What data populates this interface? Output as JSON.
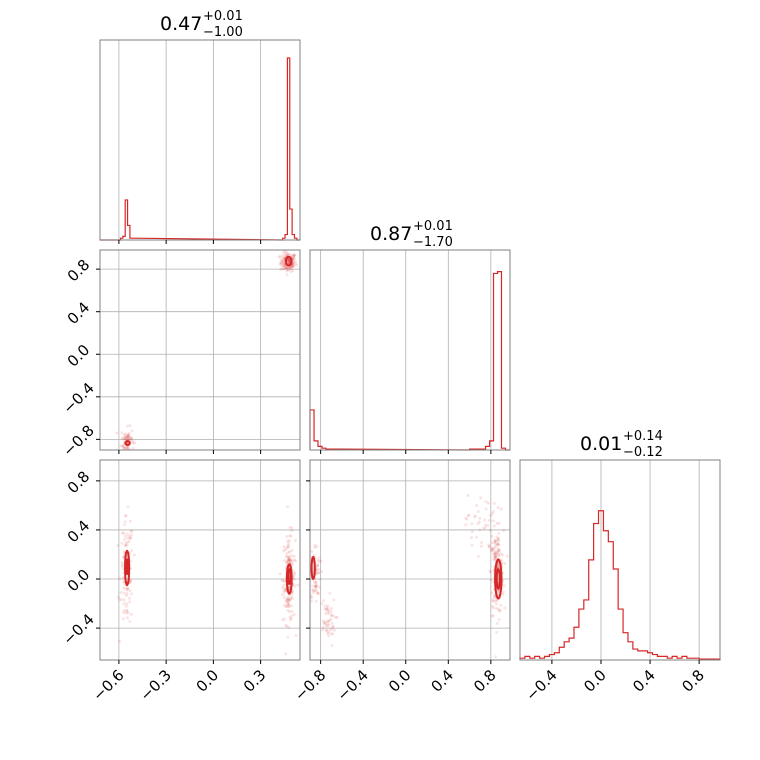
{
  "chart_data": {
    "type": "corner",
    "colors": {
      "line": "#d62728",
      "grid": "#b0b0b0",
      "frame": "#808080"
    },
    "parameters": [
      {
        "range": [
          -0.72,
          0.55
        ],
        "ticks": [
          -0.6,
          -0.3,
          0.0,
          0.3
        ],
        "tick_labels": [
          "−0.6",
          "−0.3",
          "0.0",
          "0.3"
        ]
      },
      {
        "range": [
          -0.9,
          0.98
        ],
        "ticks": [
          -0.8,
          -0.4,
          0.0,
          0.4,
          0.8
        ],
        "tick_labels": [
          "−0.8",
          "−0.4",
          "0.0",
          "0.4",
          "0.8"
        ]
      },
      {
        "range": [
          -0.66,
          0.97
        ],
        "ticks": [
          -0.4,
          0.0,
          0.4,
          0.8
        ],
        "tick_labels": [
          "−0.4",
          "0.0",
          "0.4",
          "0.8"
        ]
      }
    ],
    "titles": [
      {
        "value": "0.47",
        "plus": "+0.01",
        "minus": "−1.00"
      },
      {
        "value": "0.87",
        "plus": "+0.01",
        "minus": "−1.70"
      },
      {
        "value": "0.01",
        "plus": "+0.14",
        "minus": "−0.12"
      }
    ],
    "histograms": [
      {
        "param": 0,
        "bins": [
          [
            -0.59,
            -0.575,
            0.01
          ],
          [
            -0.575,
            -0.56,
            0.02
          ],
          [
            -0.56,
            -0.545,
            0.22
          ],
          [
            -0.545,
            -0.53,
            0.08
          ],
          [
            -0.53,
            -0.515,
            0.01
          ],
          [
            -0.515,
            -0.5,
            0.01
          ],
          [
            0.44,
            0.455,
            0.01
          ],
          [
            0.455,
            0.47,
            0.03
          ],
          [
            0.47,
            0.485,
            1.0
          ],
          [
            0.485,
            0.5,
            0.17
          ],
          [
            0.5,
            0.515,
            0.03
          ],
          [
            0.515,
            0.53,
            0.01
          ]
        ]
      },
      {
        "param": 1,
        "bins": [
          [
            -0.9,
            -0.862,
            0.22
          ],
          [
            -0.862,
            -0.825,
            0.05
          ],
          [
            -0.825,
            -0.787,
            0.02
          ],
          [
            -0.787,
            -0.75,
            0.01
          ],
          [
            -0.75,
            -0.6,
            0.005
          ],
          [
            0.6,
            0.75,
            0.005
          ],
          [
            0.75,
            0.788,
            0.02
          ],
          [
            0.788,
            0.825,
            0.05
          ],
          [
            0.825,
            0.863,
            0.97
          ],
          [
            0.863,
            0.9,
            0.98
          ],
          [
            0.9,
            0.938,
            0.01
          ]
        ]
      },
      {
        "param": 2,
        "bins": [
          [
            -0.66,
            -0.62,
            0.01
          ],
          [
            -0.62,
            -0.58,
            0.02
          ],
          [
            -0.58,
            -0.54,
            0.01
          ],
          [
            -0.54,
            -0.5,
            0.02
          ],
          [
            -0.5,
            -0.46,
            0.01
          ],
          [
            -0.46,
            -0.42,
            0.02
          ],
          [
            -0.42,
            -0.38,
            0.03
          ],
          [
            -0.38,
            -0.34,
            0.04
          ],
          [
            -0.34,
            -0.3,
            0.07
          ],
          [
            -0.3,
            -0.26,
            0.1
          ],
          [
            -0.26,
            -0.22,
            0.12
          ],
          [
            -0.22,
            -0.18,
            0.18
          ],
          [
            -0.18,
            -0.14,
            0.28
          ],
          [
            -0.14,
            -0.1,
            0.33
          ],
          [
            -0.1,
            -0.06,
            0.55
          ],
          [
            -0.06,
            -0.02,
            0.75
          ],
          [
            -0.02,
            0.02,
            0.82
          ],
          [
            0.02,
            0.06,
            0.71
          ],
          [
            0.06,
            0.1,
            0.65
          ],
          [
            0.1,
            0.14,
            0.5
          ],
          [
            0.14,
            0.18,
            0.28
          ],
          [
            0.18,
            0.22,
            0.15
          ],
          [
            0.22,
            0.26,
            0.1
          ],
          [
            0.26,
            0.3,
            0.06
          ],
          [
            0.3,
            0.34,
            0.05
          ],
          [
            0.34,
            0.38,
            0.05
          ],
          [
            0.38,
            0.42,
            0.04
          ],
          [
            0.42,
            0.46,
            0.03
          ],
          [
            0.46,
            0.5,
            0.02
          ],
          [
            0.5,
            0.54,
            0.02
          ],
          [
            0.54,
            0.58,
            0.01
          ],
          [
            0.58,
            0.62,
            0.02
          ],
          [
            0.62,
            0.66,
            0.01
          ],
          [
            0.66,
            0.7,
            0.02
          ],
          [
            0.7,
            0.74,
            0.01
          ],
          [
            0.74,
            0.8,
            0.01
          ],
          [
            0.8,
            0.97,
            0.005
          ]
        ]
      }
    ],
    "pairs": [
      {
        "x_param": 0,
        "y_param": 1,
        "clusters": [
          {
            "center": [
              0.475,
              0.865
            ],
            "spread": [
              0.025,
              0.045
            ],
            "n": 140
          },
          {
            "center": [
              -0.545,
              -0.81
            ],
            "spread": [
              0.02,
              0.06
            ],
            "n": 70
          }
        ],
        "contours": [
          {
            "center": [
              0.478,
              0.875
            ],
            "radii": [
              0.018,
              0.04
            ],
            "filled": true
          },
          {
            "center": [
              -0.545,
              -0.835
            ],
            "radii": [
              0.014,
              0.018
            ],
            "filled": false
          }
        ]
      },
      {
        "x_param": 0,
        "y_param": 2,
        "clusters": [
          {
            "center": [
              0.48,
              0.0
            ],
            "spread": [
              0.02,
              0.18
            ],
            "n": 170
          },
          {
            "center": [
              -0.55,
              0.05
            ],
            "spread": [
              0.02,
              0.22
            ],
            "n": 110
          }
        ],
        "contours": [
          {
            "center": [
              0.482,
              0.0
            ],
            "radii": [
              0.015,
              0.12
            ],
            "filled": true
          },
          {
            "center": [
              0.482,
              0.02
            ],
            "radii": [
              0.008,
              0.06
            ],
            "filled": false
          },
          {
            "center": [
              -0.548,
              0.09
            ],
            "radii": [
              0.013,
              0.14
            ],
            "filled": false
          },
          {
            "center": [
              -0.548,
              0.1
            ],
            "radii": [
              0.006,
              0.06
            ],
            "filled": false
          }
        ]
      },
      {
        "x_param": 1,
        "y_param": 2,
        "clusters": [
          {
            "center": [
              0.86,
              0.05
            ],
            "spread": [
              0.03,
              0.17
            ],
            "n": 170
          },
          {
            "center": [
              -0.85,
              0.05
            ],
            "spread": [
              0.025,
              0.12
            ],
            "n": 70
          },
          {
            "center": [
              -0.74,
              -0.35
            ],
            "spread": [
              0.04,
              0.1
            ],
            "n": 50
          },
          {
            "center": [
              0.72,
              0.45
            ],
            "spread": [
              0.08,
              0.12
            ],
            "n": 50
          }
        ],
        "contours": [
          {
            "center": [
              0.87,
              0.0
            ],
            "radii": [
              0.03,
              0.16
            ],
            "filled": true
          },
          {
            "center": [
              0.87,
              0.0
            ],
            "radii": [
              0.015,
              0.08
            ],
            "filled": false
          },
          {
            "center": [
              -0.87,
              0.09
            ],
            "radii": [
              0.015,
              0.09
            ],
            "filled": false
          }
        ]
      }
    ]
  }
}
